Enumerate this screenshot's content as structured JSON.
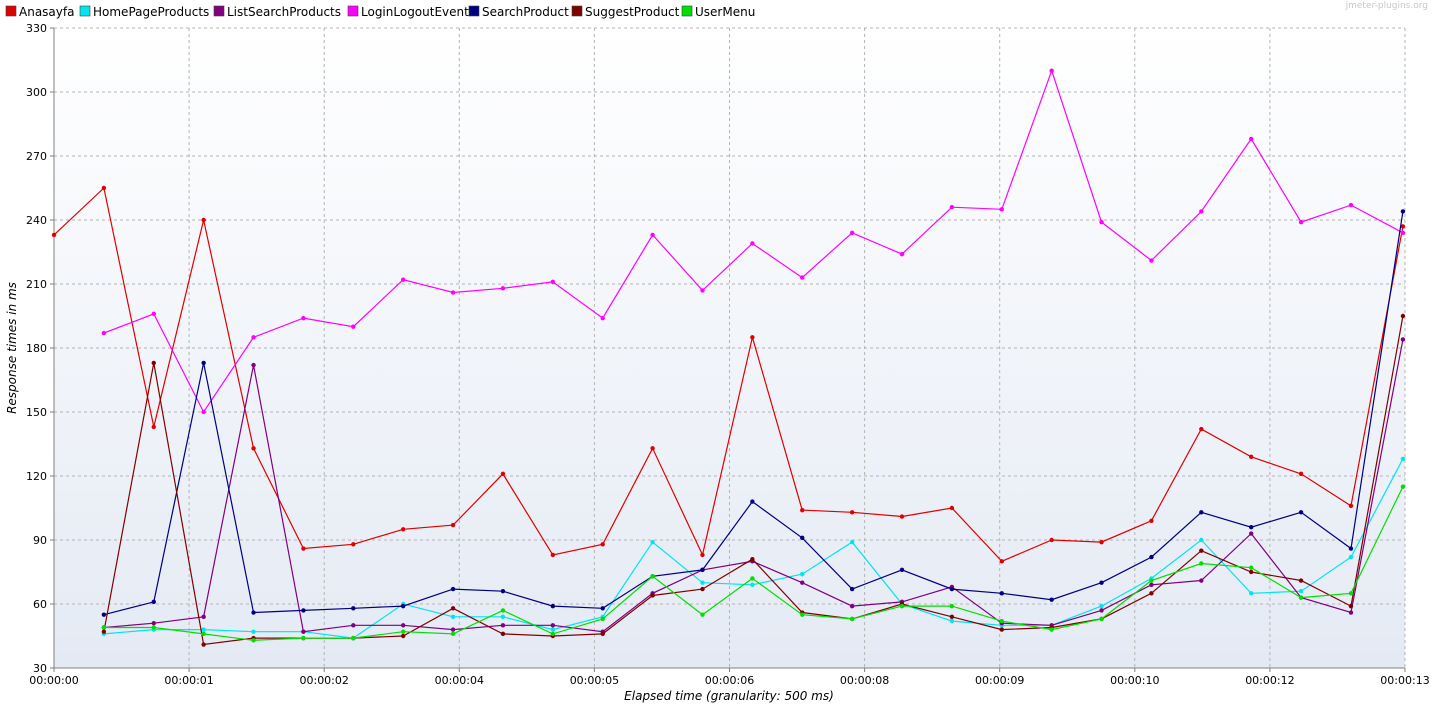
{
  "watermark": "jmeter-plugins.org",
  "chart_data": {
    "type": "line",
    "xlabel": "Elapsed time (granularity: 500 ms)",
    "ylabel": "Response times in ms",
    "ylim": [
      30,
      330
    ],
    "yticks": [
      30,
      60,
      90,
      120,
      150,
      180,
      210,
      240,
      270,
      300,
      330
    ],
    "x_tick_labels": [
      "00:00:00",
      "00:00:01",
      "00:00:02",
      "00:00:04",
      "00:00:05",
      "00:00:06",
      "00:00:08",
      "00:00:09",
      "00:00:10",
      "00:00:12",
      "00:00:13"
    ],
    "x_tick_positions_s": [
      0,
      1.3,
      2.6,
      3.9,
      5.2,
      6.5,
      7.8,
      9.1,
      10.4,
      11.7,
      13.0
    ],
    "xlim_s": [
      0,
      13.0
    ],
    "grid": true,
    "legend_position": "top",
    "series": [
      {
        "name": "Anasayfa",
        "color": "#e00000",
        "x": [
          0,
          0.48,
          0.96,
          1.44,
          1.92,
          2.4,
          2.88,
          3.36,
          3.84,
          4.32,
          4.8,
          5.28,
          5.76,
          6.24,
          6.72,
          7.2,
          7.68,
          8.16,
          8.64,
          9.12,
          9.6,
          10.08,
          10.56,
          11.04,
          11.52,
          12.0,
          12.48,
          12.98
        ],
        "values": [
          233,
          255,
          143,
          240,
          133,
          86,
          88,
          95,
          97,
          121,
          83,
          88,
          133,
          83,
          185,
          104,
          103,
          101,
          105,
          80,
          90,
          89,
          99,
          142,
          129,
          121,
          106,
          237
        ]
      },
      {
        "name": "HomePageProducts",
        "color": "#00e5f0",
        "x": [
          0.48,
          0.96,
          1.44,
          1.92,
          2.4,
          2.88,
          3.36,
          3.84,
          4.32,
          4.8,
          5.28,
          5.76,
          6.24,
          6.72,
          7.2,
          7.68,
          8.16,
          8.64,
          9.12,
          9.6,
          10.08,
          10.56,
          11.04,
          11.52,
          12.0,
          12.48,
          12.98
        ],
        "values": [
          46,
          48,
          48,
          47,
          47,
          44,
          60,
          54,
          54,
          48,
          54,
          89,
          70,
          69,
          74,
          89,
          60,
          52,
          50,
          50,
          59,
          72,
          90,
          65,
          66,
          82,
          128
        ]
      },
      {
        "name": "ListSearchProducts",
        "color": "#800080",
        "x": [
          0.48,
          0.96,
          1.44,
          1.92,
          2.4,
          2.88,
          3.36,
          3.84,
          4.32,
          4.8,
          5.28,
          5.76,
          6.24,
          6.72,
          7.2,
          7.68,
          8.16,
          8.64,
          9.12,
          9.6,
          10.08,
          10.56,
          11.04,
          11.52,
          12.0,
          12.48,
          12.98
        ],
        "values": [
          49,
          51,
          54,
          172,
          47,
          50,
          50,
          48,
          50,
          50,
          47,
          65,
          76,
          80,
          70,
          59,
          61,
          68,
          51,
          50,
          57,
          69,
          71,
          93,
          63,
          56,
          184
        ]
      },
      {
        "name": "LoginLogoutEvent",
        "color": "#ff00ff",
        "x": [
          0.48,
          0.96,
          1.44,
          1.92,
          2.4,
          2.88,
          3.36,
          3.84,
          4.32,
          4.8,
          5.28,
          5.76,
          6.24,
          6.72,
          7.2,
          7.68,
          8.16,
          8.64,
          9.12,
          9.6,
          10.08,
          10.56,
          11.04,
          11.52,
          12.0,
          12.48,
          12.98
        ],
        "values": [
          187,
          196,
          150,
          185,
          194,
          190,
          212,
          206,
          208,
          211,
          194,
          233,
          207,
          229,
          213,
          234,
          224,
          246,
          245,
          310,
          239,
          221,
          244,
          278,
          239,
          247,
          234
        ]
      },
      {
        "name": "SearchProduct",
        "color": "#000080",
        "x": [
          0.48,
          0.96,
          1.44,
          1.92,
          2.4,
          2.88,
          3.36,
          3.84,
          4.32,
          4.8,
          5.28,
          5.76,
          6.24,
          6.72,
          7.2,
          7.68,
          8.16,
          8.64,
          9.12,
          9.6,
          10.08,
          10.56,
          11.04,
          11.52,
          12.0,
          12.48,
          12.98
        ],
        "values": [
          55,
          61,
          173,
          56,
          57,
          58,
          59,
          67,
          66,
          59,
          58,
          73,
          76,
          108,
          91,
          67,
          76,
          67,
          65,
          62,
          70,
          82,
          103,
          96,
          103,
          86,
          244
        ]
      },
      {
        "name": "SuggestProduct",
        "color": "#800000",
        "x": [
          0.48,
          0.96,
          1.44,
          1.92,
          2.4,
          2.88,
          3.36,
          3.84,
          4.32,
          4.8,
          5.28,
          5.76,
          6.24,
          6.72,
          7.2,
          7.68,
          8.16,
          8.64,
          9.12,
          9.6,
          10.08,
          10.56,
          11.04,
          11.52,
          12.0,
          12.48,
          12.98
        ],
        "values": [
          47,
          173,
          41,
          44,
          44,
          44,
          45,
          58,
          46,
          45,
          46,
          64,
          67,
          81,
          56,
          53,
          60,
          54,
          48,
          49,
          53,
          65,
          85,
          75,
          71,
          59,
          195
        ]
      },
      {
        "name": "UserMenu",
        "color": "#00e000",
        "x": [
          0.48,
          0.96,
          1.44,
          1.92,
          2.4,
          2.88,
          3.36,
          3.84,
          4.32,
          4.8,
          5.28,
          5.76,
          6.24,
          6.72,
          7.2,
          7.68,
          8.16,
          8.64,
          9.12,
          9.6,
          10.08,
          10.56,
          11.04,
          11.52,
          12.0,
          12.48,
          12.98
        ],
        "values": [
          49,
          49,
          46,
          43,
          44,
          44,
          47,
          46,
          57,
          46,
          53,
          73,
          55,
          72,
          55,
          53,
          59,
          59,
          52,
          48,
          53,
          71,
          79,
          77,
          63,
          65,
          115
        ]
      }
    ]
  }
}
